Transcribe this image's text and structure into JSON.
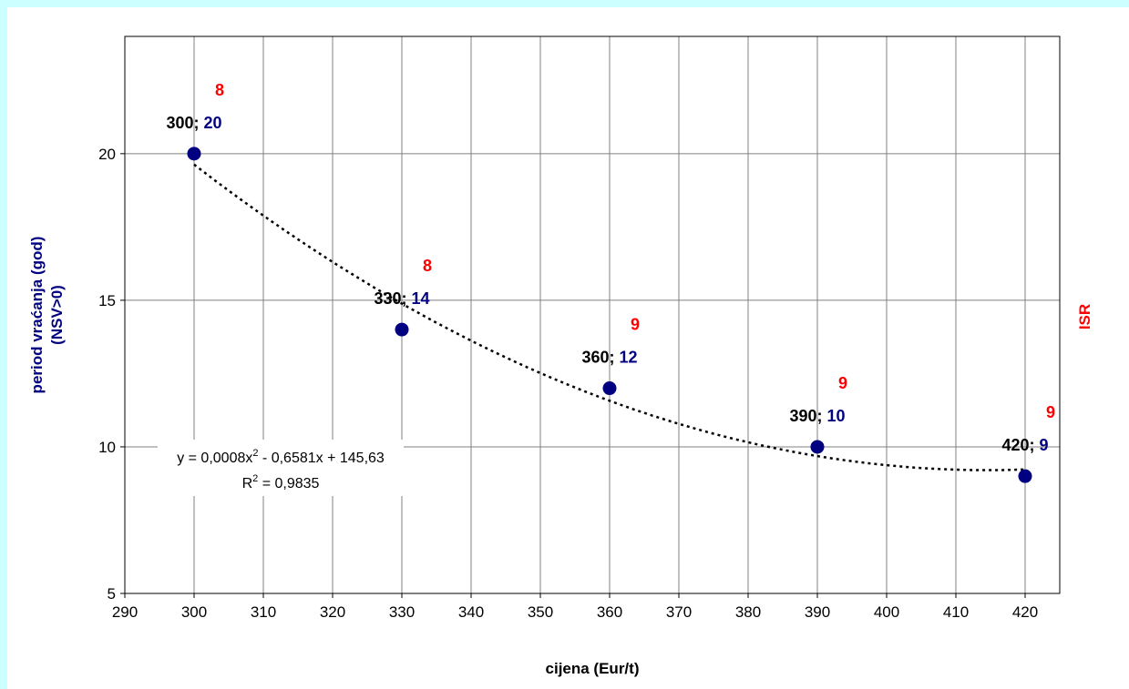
{
  "chart_data": {
    "type": "scatter",
    "xlabel": "cijena (Eur/t)",
    "ylabel_line1": "period vraćanja (god)",
    "ylabel_line2": "(NSV>0)",
    "y2label": "ISR",
    "xlim": [
      290,
      425
    ],
    "ylim": [
      5,
      24
    ],
    "x_ticks": [
      290,
      300,
      310,
      320,
      330,
      340,
      350,
      360,
      370,
      380,
      390,
      400,
      410,
      420
    ],
    "y_ticks": [
      5,
      10,
      15,
      20
    ],
    "grid": true,
    "points": [
      {
        "x": 300,
        "y": 20,
        "isr": 8
      },
      {
        "x": 330,
        "y": 14,
        "isr": 8
      },
      {
        "x": 360,
        "y": 12,
        "isr": 9
      },
      {
        "x": 390,
        "y": 10,
        "isr": 9
      },
      {
        "x": 420,
        "y": 9,
        "isr": 9
      }
    ],
    "trendline": {
      "type": "polynomial",
      "equation_line1": "y = 0,0008x",
      "equation_sup": "2",
      "equation_rest": " - 0,6581x + 145,63",
      "r2_prefix": "R",
      "r2_sup": "2",
      "r2_rest": " = 0,9835",
      "x_from": 300,
      "x_to": 420
    },
    "colors": {
      "point": "#000080",
      "y_label": "#000080",
      "x_label": "#000000",
      "isr": "#ff0000",
      "grid": "#808080",
      "trendline": "#000000"
    }
  }
}
